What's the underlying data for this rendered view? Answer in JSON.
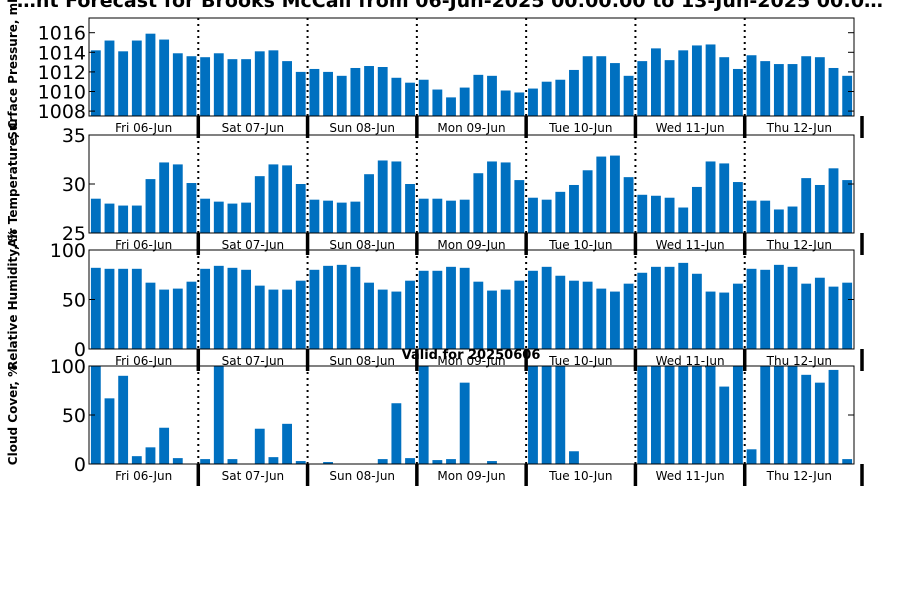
{
  "title": "…nt Forecast for Brooks McCall from 06-Jun-2025 00:00:00 to 13-Jun-2025 00:0…",
  "valid_label": "Valid for 20250606",
  "colors": {
    "bar": "#0070C0",
    "axes": "#000000",
    "background": "#FFFFFF"
  },
  "chart_data": [
    {
      "type": "bar",
      "ylabel": "Surface Pressure, mb",
      "ylim": [
        1007.5,
        1017.5
      ],
      "yticks": [
        1008,
        1010,
        1012,
        1014,
        1016
      ],
      "ytick_labels": [
        "1008",
        "1010",
        "1012",
        "1014",
        "1016"
      ],
      "x_interval_hours": 3,
      "day_labels": [
        "Fri 06-Jun",
        "Sat 07-Jun",
        "Sun 08-Jun",
        "Mon 09-Jun",
        "Tue 10-Jun",
        "Wed 11-Jun",
        "Thu 12-Jun"
      ],
      "values": [
        1014.2,
        1015.2,
        1014.1,
        1015.2,
        1015.9,
        1015.3,
        1013.9,
        1013.6,
        1013.5,
        1013.9,
        1013.3,
        1013.3,
        1014.1,
        1014.2,
        1013.1,
        1012.0,
        1012.3,
        1012.0,
        1011.6,
        1012.4,
        1012.6,
        1012.5,
        1011.4,
        1010.9,
        1011.2,
        1010.2,
        1009.4,
        1010.4,
        1011.7,
        1011.6,
        1010.1,
        1009.9,
        1010.3,
        1011.0,
        1011.2,
        1012.2,
        1013.6,
        1013.6,
        1012.9,
        1011.6,
        1013.1,
        1014.4,
        1013.2,
        1014.2,
        1014.7,
        1014.8,
        1013.5,
        1012.3,
        1013.7,
        1013.1,
        1012.8,
        1012.8,
        1013.6,
        1013.5,
        1012.4,
        1011.6
      ]
    },
    {
      "type": "bar",
      "ylabel": "Air Temperature, C",
      "ylim": [
        25,
        35
      ],
      "yticks": [
        25,
        30,
        35
      ],
      "ytick_labels": [
        "25",
        "30",
        "35"
      ],
      "x_interval_hours": 3,
      "day_labels": [
        "Fri 06-Jun",
        "Sat 07-Jun",
        "Sun 08-Jun",
        "Mon 09-Jun",
        "Tue 10-Jun",
        "Wed 11-Jun",
        "Thu 12-Jun"
      ],
      "values": [
        28.5,
        28.0,
        27.8,
        27.8,
        30.5,
        32.2,
        32.0,
        30.1,
        28.5,
        28.2,
        28.0,
        28.1,
        30.8,
        32.0,
        31.9,
        30.0,
        28.4,
        28.3,
        28.1,
        28.2,
        31.0,
        32.4,
        32.3,
        30.0,
        28.5,
        28.5,
        28.3,
        28.4,
        31.1,
        32.3,
        32.2,
        30.4,
        28.6,
        28.4,
        29.2,
        29.9,
        31.4,
        32.8,
        32.9,
        30.7,
        28.9,
        28.8,
        28.6,
        27.6,
        29.7,
        32.3,
        32.1,
        30.2,
        28.3,
        28.3,
        27.4,
        27.7,
        30.6,
        29.9,
        31.6,
        30.4
      ]
    },
    {
      "type": "bar",
      "ylabel": "Relative Humidity, %",
      "ylim": [
        0,
        100
      ],
      "yticks": [
        0,
        50,
        100
      ],
      "ytick_labels": [
        "0",
        "50",
        "100"
      ],
      "x_interval_hours": 3,
      "day_labels": [
        "Fri 06-Jun",
        "Sat 07-Jun",
        "Sun 08-Jun",
        "Mon 09-Jun",
        "Tue 10-Jun",
        "Wed 11-Jun",
        "Thu 12-Jun"
      ],
      "values": [
        82,
        81,
        81,
        81,
        67,
        60,
        61,
        68,
        81,
        84,
        82,
        80,
        64,
        60,
        60,
        69,
        80,
        84,
        85,
        83,
        67,
        60,
        58,
        69,
        79,
        79,
        83,
        82,
        68,
        59,
        60,
        69,
        79,
        83,
        74,
        69,
        68,
        61,
        58,
        66,
        77,
        83,
        83,
        87,
        76,
        58,
        57,
        66,
        81,
        80,
        85,
        83,
        66,
        72,
        63,
        67
      ]
    },
    {
      "type": "bar",
      "ylabel": "Cloud Cover, %",
      "ylim": [
        0,
        100
      ],
      "yticks": [
        0,
        50,
        100
      ],
      "ytick_labels": [
        "0",
        "50",
        "100"
      ],
      "x_interval_hours": 3,
      "day_labels": [
        "Fri 06-Jun",
        "Sat 07-Jun",
        "Sun 08-Jun",
        "Mon 09-Jun",
        "Tue 10-Jun",
        "Wed 11-Jun",
        "Thu 12-Jun"
      ],
      "values": [
        100,
        67,
        90,
        8,
        17,
        37,
        6,
        0,
        5,
        100,
        5,
        0,
        36,
        7,
        41,
        3,
        0,
        2,
        0,
        0,
        0,
        5,
        62,
        6,
        100,
        4,
        5,
        83,
        0,
        3,
        0,
        0,
        100,
        100,
        100,
        13,
        0,
        0,
        0,
        0,
        100,
        100,
        100,
        100,
        100,
        100,
        79,
        100,
        15,
        100,
        100,
        100,
        91,
        83,
        96,
        5
      ]
    }
  ]
}
